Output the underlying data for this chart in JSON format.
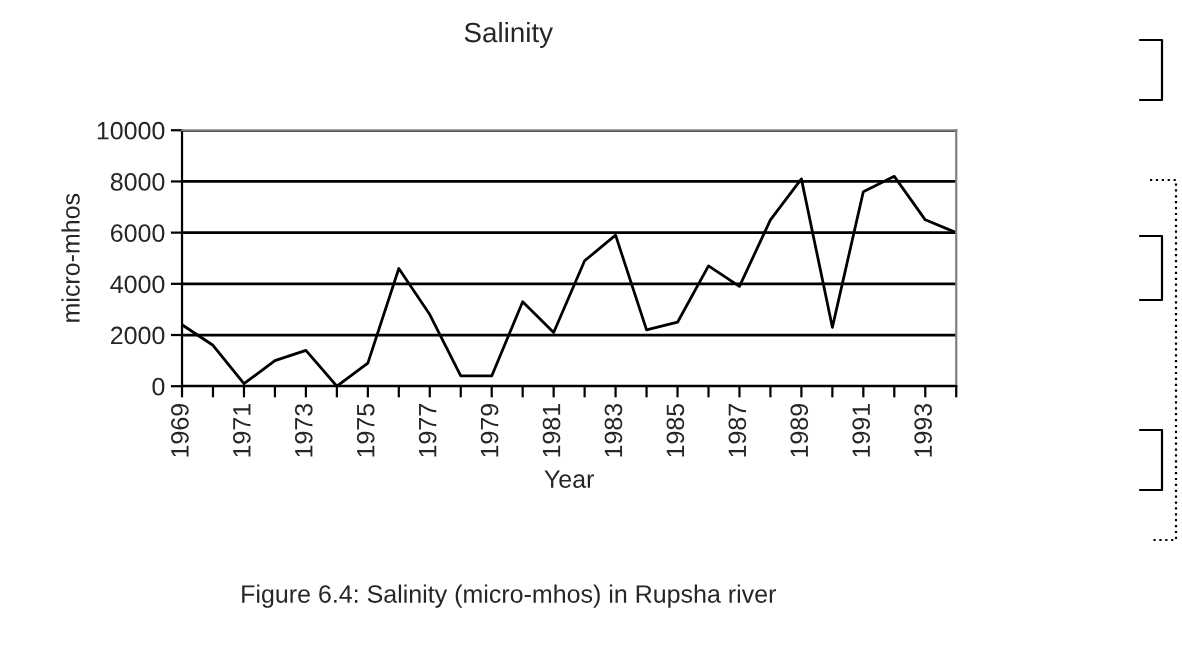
{
  "chart_data": {
    "type": "line",
    "title": "Salinity",
    "xlabel": "Year",
    "ylabel": "micro-mhos",
    "x": [
      1969,
      1970,
      1971,
      1972,
      1973,
      1974,
      1975,
      1976,
      1977,
      1978,
      1979,
      1980,
      1981,
      1982,
      1983,
      1984,
      1985,
      1986,
      1987,
      1988,
      1989,
      1990,
      1991,
      1992,
      1993,
      1994
    ],
    "series": [
      {
        "color": "#000000",
        "values": [
          2400,
          1600,
          100,
          1000,
          1400,
          0,
          900,
          4600,
          2800,
          400,
          400,
          3300,
          2100,
          4900,
          5900,
          2200,
          2500,
          4700,
          3900,
          6500,
          8100,
          2300,
          7600,
          8200,
          6500,
          6000
        ]
      }
    ],
    "xlim": [
      1969,
      1994
    ],
    "xticks": [
      1969,
      {
        "value": 1970,
        "label": null
      },
      1971,
      {
        "value": 1972,
        "label": null
      },
      1973,
      {
        "value": 1974,
        "label": null
      },
      1975,
      {
        "value": 1976,
        "label": null
      },
      1977,
      {
        "value": 1978,
        "label": null
      },
      1979,
      {
        "value": 1980,
        "label": null
      },
      1981,
      {
        "value": 1982,
        "label": null
      },
      1983,
      {
        "value": 1984,
        "label": null
      },
      1985,
      {
        "value": 1986,
        "label": null
      },
      1987,
      {
        "value": 1988,
        "label": null
      },
      1989,
      {
        "value": 1990,
        "label": null
      },
      1991,
      {
        "value": 1992,
        "label": null
      },
      1993,
      {
        "value": 1994,
        "label": null
      }
    ],
    "ylim": [
      0,
      10000
    ],
    "yticks": [
      0,
      2000,
      4000,
      6000,
      8000,
      10000
    ],
    "grid": "y",
    "marker": "none",
    "line_style": "solid",
    "annotations": [
      "Figure 6.4: Salinity (micro-mhos) in Rupsha river"
    ]
  }
}
